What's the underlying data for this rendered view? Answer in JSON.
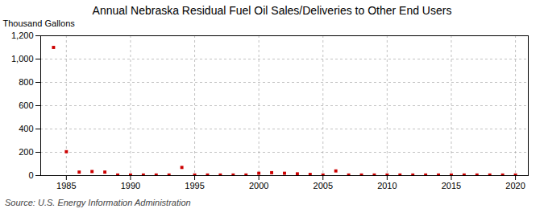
{
  "chart_data": {
    "type": "scatter",
    "title": "Annual Nebraska Residual Fuel Oil Sales/Deliveries to Other End Users",
    "ylabel": "Thousand Gallons",
    "annotations": [
      "Source: U.S. Energy Information Administration"
    ],
    "x": [
      1984,
      1985,
      1986,
      1987,
      1988,
      1989,
      1990,
      1991,
      1992,
      1993,
      1994,
      1995,
      1996,
      1997,
      1998,
      1999,
      2000,
      2001,
      2002,
      2003,
      2004,
      2005,
      2006,
      2007,
      2008,
      2009,
      2010,
      2011,
      2012,
      2013,
      2014,
      2015,
      2016,
      2017,
      2018,
      2019,
      2020
    ],
    "values": [
      1100,
      205,
      30,
      35,
      30,
      5,
      5,
      5,
      5,
      5,
      70,
      5,
      5,
      5,
      5,
      5,
      20,
      25,
      20,
      15,
      10,
      5,
      40,
      5,
      5,
      5,
      5,
      5,
      5,
      5,
      5,
      5,
      5,
      5,
      5,
      5,
      5
    ],
    "color": "#cc0000",
    "marker": "square",
    "xlim": [
      1983,
      2021
    ],
    "xticks": [
      1985,
      1990,
      1995,
      2000,
      2005,
      2010,
      2015,
      2020
    ],
    "ylim": [
      0,
      1200
    ],
    "yticks": [
      0,
      200,
      400,
      600,
      800,
      {
        "value": 1000,
        "label": "1,000"
      },
      {
        "value": 1200,
        "label": "1,200"
      }
    ],
    "grid": true
  }
}
